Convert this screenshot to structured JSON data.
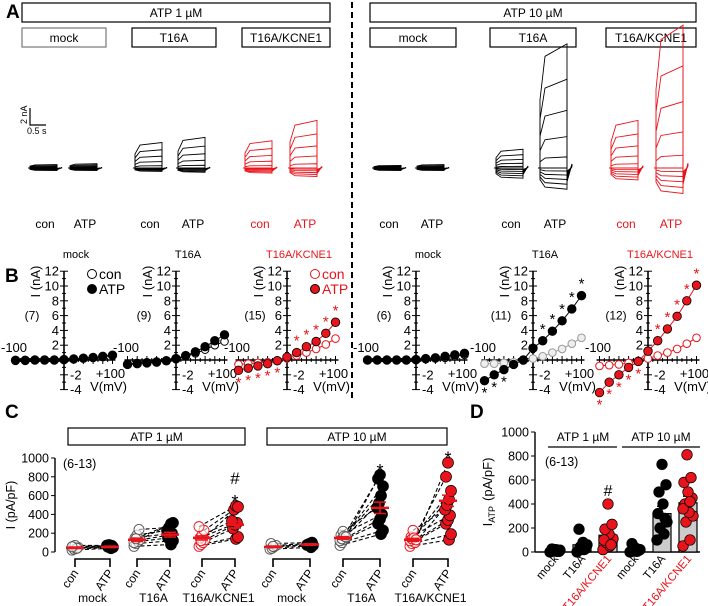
{
  "panel_labels": [
    "A",
    "B",
    "C",
    "D"
  ],
  "colors": {
    "black": "#000000",
    "red": "#e8141b",
    "gray": "#999999",
    "bar": "#cccccc"
  },
  "panel_a": {
    "conditions": [
      "ATP 1 µM",
      "ATP 10 µM"
    ],
    "groups": [
      "mock",
      "T16A",
      "T16A/KCNE1"
    ],
    "states": [
      "con",
      "ATP"
    ],
    "scale_bar": {
      "current": "2 nA",
      "time": "0.5 s"
    },
    "traces": [
      {
        "cond": 0,
        "group": 0,
        "state": 0,
        "peak_nA": 0.4,
        "min_nA": -0.3
      },
      {
        "cond": 0,
        "group": 0,
        "state": 1,
        "peak_nA": 0.5,
        "min_nA": -0.3
      },
      {
        "cond": 0,
        "group": 1,
        "state": 0,
        "peak_nA": 3.0,
        "min_nA": -0.4
      },
      {
        "cond": 0,
        "group": 1,
        "state": 1,
        "peak_nA": 3.6,
        "min_nA": -0.5
      },
      {
        "cond": 0,
        "group": 2,
        "state": 0,
        "peak_nA": 3.2,
        "min_nA": -0.6
      },
      {
        "cond": 0,
        "group": 2,
        "state": 1,
        "peak_nA": 5.6,
        "min_nA": -1.0
      },
      {
        "cond": 1,
        "group": 0,
        "state": 0,
        "peak_nA": 0.3,
        "min_nA": -0.3
      },
      {
        "cond": 1,
        "group": 0,
        "state": 1,
        "peak_nA": 0.4,
        "min_nA": -0.3
      },
      {
        "cond": 1,
        "group": 1,
        "state": 0,
        "peak_nA": 2.2,
        "min_nA": -1.2
      },
      {
        "cond": 1,
        "group": 1,
        "state": 1,
        "peak_nA": 14.6,
        "min_nA": -2.5
      },
      {
        "cond": 1,
        "group": 2,
        "state": 0,
        "peak_nA": 5.6,
        "min_nA": -1.4
      },
      {
        "cond": 1,
        "group": 2,
        "state": 1,
        "peak_nA": 16.8,
        "min_nA": -3.0
      }
    ]
  },
  "chart_data": [
    {
      "type": "line",
      "panel": "B",
      "xlabel": "V(mV)",
      "ylabel": "I (nA)",
      "x_tick_labels": [
        "-100",
        "+100"
      ],
      "y_ticks": [
        "12",
        "10",
        "8",
        "6",
        "4",
        "2",
        "-2",
        "-4"
      ],
      "xlim": [
        -100,
        100
      ],
      "ylim": [
        -4,
        12
      ],
      "legend": [
        "con",
        "ATP"
      ],
      "legend_placement": "top-right",
      "x": [
        -100,
        -80,
        -60,
        -40,
        -20,
        0,
        20,
        40,
        60,
        80,
        100
      ],
      "plots": [
        {
          "title": "mock",
          "cond": "ATP 1 µM",
          "n": "(7)",
          "red": false,
          "con": [
            0,
            0,
            0,
            0,
            0,
            0.05,
            0.1,
            0.2,
            0.3,
            0.4,
            0.6
          ],
          "atp": [
            -0.05,
            -0.05,
            0,
            0,
            0,
            0.05,
            0.15,
            0.25,
            0.35,
            0.5,
            0.65
          ],
          "sig": [
            0,
            0,
            0,
            0,
            0,
            0,
            0,
            0,
            0,
            0,
            0
          ]
        },
        {
          "title": "T16A",
          "cond": "ATP 1 µM",
          "n": "(9)",
          "red": false,
          "con": [
            -0.5,
            -0.4,
            -0.3,
            -0.2,
            -0.1,
            0.1,
            0.5,
            0.9,
            1.4,
            2.0,
            2.5
          ],
          "atp": [
            -0.6,
            -0.5,
            -0.4,
            -0.3,
            -0.1,
            0.2,
            0.6,
            1.1,
            1.8,
            2.6,
            3.4
          ],
          "sig": [
            0,
            0,
            0,
            0,
            0,
            0,
            0,
            0,
            0,
            0,
            0
          ]
        },
        {
          "title": "T16A/KCNE1",
          "cond": "ATP 1 µM",
          "n": "(15)",
          "red": true,
          "con": [
            -0.6,
            -0.5,
            -0.4,
            -0.3,
            -0.1,
            0.2,
            0.6,
            1.0,
            1.5,
            2.1,
            2.9
          ],
          "atp": [
            -1.4,
            -1.1,
            -0.8,
            -0.5,
            -0.1,
            0.4,
            1.0,
            1.8,
            2.5,
            3.6,
            5.1
          ],
          "sig": [
            1,
            1,
            1,
            1,
            1,
            0,
            1,
            1,
            1,
            1,
            1
          ]
        },
        {
          "title": "mock",
          "cond": "ATP 10 µM",
          "n": "(6)",
          "red": false,
          "con": [
            0,
            0,
            0,
            0,
            0,
            0,
            0.1,
            0.2,
            0.3,
            0.5,
            0.7
          ],
          "atp": [
            0,
            0,
            0,
            0,
            0,
            0.05,
            0.2,
            0.3,
            0.5,
            0.7,
            0.9
          ],
          "sig": [
            0,
            0,
            0,
            0,
            0,
            0,
            0,
            0,
            0,
            0,
            0
          ]
        },
        {
          "title": "T16A",
          "cond": "ATP 10 µM",
          "n": "(11)",
          "red": false,
          "con": [
            -0.5,
            -0.5,
            -0.4,
            -0.3,
            -0.1,
            0.2,
            0.5,
            1.0,
            1.5,
            2.2,
            3.0
          ],
          "atp": [
            -2.8,
            -2.0,
            -1.3,
            -0.6,
            0.0,
            1.6,
            2.6,
            3.9,
            5.3,
            6.9,
            8.7
          ],
          "sig": [
            1,
            1,
            1,
            0,
            0,
            0,
            1,
            1,
            1,
            1,
            1
          ]
        },
        {
          "title": "T16A/KCNE1",
          "cond": "ATP 10 µM",
          "n": "(12)",
          "red": true,
          "con": [
            -0.8,
            -0.7,
            -0.6,
            -0.4,
            -0.1,
            0.2,
            0.6,
            1.0,
            1.5,
            2.2,
            3.0
          ],
          "atp": [
            -4.4,
            -3.0,
            -2.0,
            -1.0,
            -0.2,
            1.2,
            2.6,
            4.2,
            5.9,
            8.0,
            10.1
          ],
          "sig": [
            1,
            1,
            1,
            1,
            1,
            0,
            1,
            1,
            1,
            1,
            1
          ]
        }
      ]
    },
    {
      "type": "scatter",
      "panel": "C",
      "ylabel": "I (pA/pF)",
      "ylim": [
        0,
        1000
      ],
      "y_ticks": [
        "0",
        "200",
        "400",
        "600",
        "800",
        "1000"
      ],
      "n_label": "(6-13)",
      "conditions": [
        "ATP 1 µM",
        "ATP 10 µM"
      ],
      "x_labels": [
        "con",
        "ATP"
      ],
      "annotations": {
        "star": "*",
        "hash": "#"
      },
      "groups": [
        {
          "name": "mock",
          "cond": 0,
          "red": false,
          "con": [
            20,
            30,
            40,
            50,
            60,
            70,
            40,
            55
          ],
          "atp": [
            40,
            50,
            55,
            60,
            65,
            70,
            75,
            50
          ],
          "con_mean": 45,
          "atp_mean": 55,
          "con_sem": 8,
          "atp_sem": 8,
          "marks": []
        },
        {
          "name": "T16A",
          "cond": 0,
          "red": false,
          "con": [
            60,
            90,
            110,
            130,
            150,
            180,
            240,
            100,
            140
          ],
          "atp": [
            80,
            120,
            150,
            180,
            200,
            230,
            260,
            300,
            310
          ],
          "con_mean": 130,
          "atp_mean": 185,
          "con_sem": 18,
          "atp_sem": 25,
          "marks": []
        },
        {
          "name": "T16A/KCNE1",
          "cond": 0,
          "red": true,
          "con": [
            60,
            80,
            100,
            130,
            150,
            180,
            230,
            270,
            120
          ],
          "atp": [
            140,
            160,
            250,
            290,
            310,
            330,
            450,
            490,
            480
          ],
          "con_mean": 150,
          "atp_mean": 290,
          "con_sem": 22,
          "atp_sem": 35,
          "marks": [
            "*",
            "#"
          ]
        },
        {
          "name": "mock",
          "cond": 1,
          "red": false,
          "con": [
            30,
            40,
            55,
            70,
            90,
            60
          ],
          "atp": [
            50,
            70,
            80,
            90,
            100,
            75
          ],
          "con_mean": 55,
          "atp_mean": 80,
          "con_sem": 9,
          "atp_sem": 8,
          "marks": []
        },
        {
          "name": "T16A",
          "cond": 1,
          "red": false,
          "con": [
            70,
            100,
            130,
            150,
            180,
            220,
            160,
            120,
            140,
            170,
            160
          ],
          "atp": [
            190,
            230,
            300,
            350,
            400,
            470,
            520,
            600,
            700,
            780,
            820
          ],
          "con_mean": 150,
          "atp_mean": 470,
          "con_sem": 14,
          "atp_sem": 60,
          "marks": [
            "*"
          ]
        },
        {
          "name": "T16A/KCNE1",
          "cond": 1,
          "red": true,
          "con": [
            60,
            90,
            110,
            130,
            160,
            230,
            100,
            120,
            140,
            150,
            130
          ],
          "atp": [
            130,
            190,
            300,
            340,
            390,
            450,
            500,
            560,
            650,
            800,
            950
          ],
          "con_mean": 130,
          "atp_mean": 545,
          "con_sem": 15,
          "atp_sem": 60,
          "marks": [
            "*"
          ]
        }
      ]
    },
    {
      "type": "bar",
      "panel": "D",
      "ylabel_main": "I",
      "ylabel_sub": "ATP",
      "ylabel_unit": "(pA/pF)",
      "ylim": [
        0,
        1000
      ],
      "y_ticks": [
        "0",
        "200",
        "400",
        "600",
        "800",
        "1000"
      ],
      "n_label": "(6-13)",
      "conditions": [
        "ATP 1 µM",
        "ATP 10 µM"
      ],
      "categories": [
        "mock",
        "T16A",
        "T16A/KCNE1",
        "mock",
        "T16A",
        "T16A/KCNE1"
      ],
      "red": [
        false,
        false,
        true,
        false,
        false,
        true
      ],
      "values": [
        15,
        60,
        140,
        20,
        320,
        410
      ],
      "sem": [
        5,
        15,
        25,
        8,
        60,
        55
      ],
      "marks": [
        "",
        "",
        "#",
        "",
        "",
        ""
      ],
      "points": [
        [
          0,
          5,
          10,
          15,
          20,
          25,
          5,
          10
        ],
        [
          0,
          20,
          40,
          60,
          80,
          190,
          30,
          50
        ],
        [
          20,
          50,
          80,
          110,
          150,
          190,
          230,
          400,
          100,
          60
        ],
        [
          0,
          5,
          10,
          20,
          30,
          70,
          15
        ],
        [
          100,
          150,
          200,
          250,
          400,
          500,
          560,
          730,
          320,
          280
        ],
        [
          50,
          100,
          250,
          300,
          330,
          400,
          450,
          500,
          580,
          620,
          810,
          360,
          420
        ]
      ]
    }
  ]
}
